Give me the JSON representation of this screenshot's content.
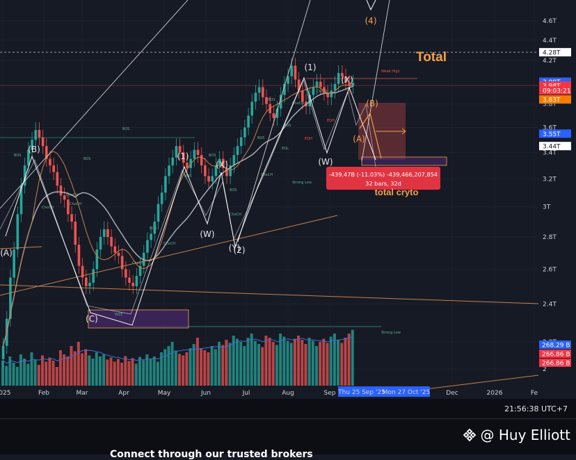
{
  "chart_data": {
    "type": "candlestick",
    "title": "Total",
    "annotation": "total cryto",
    "y_scale": "log",
    "y_axis": {
      "ticks": [
        "4.6T",
        "4.4T",
        "4.2T",
        "3.8T",
        "3.6T",
        "3.4T",
        "3.2T",
        "3T",
        "2.8T",
        "2.6T",
        "2.4T",
        "2.2T",
        "2"
      ],
      "range_T": [
        1.98,
        4.88
      ]
    },
    "x_axis": {
      "ticks": [
        "2025",
        "Feb",
        "Mar",
        "Apr",
        "May",
        "Jun",
        "Jul",
        "Aug",
        "Sep",
        "Dec",
        "2026",
        "Fe"
      ],
      "highlight_dates": [
        "Thu 25 Sep '25",
        "Mon 27 Oct '25"
      ]
    },
    "price_badges": [
      {
        "label": "4.28T",
        "value_T": 4.28,
        "bg": "#ffffff",
        "fg": "#131722"
      },
      {
        "label": "3.99T",
        "value_T": 4.0,
        "bg": "#2962ff",
        "fg": "#ffffff"
      },
      {
        "label": "3.98T",
        "value_T": 3.965,
        "bg": "#f23645",
        "fg": "#ffffff"
      },
      {
        "label": "09:03:21",
        "value_T": 3.92,
        "bg": "#f23645",
        "fg": "#ffffff"
      },
      {
        "label": "3.83T",
        "value_T": 3.84,
        "bg": "#f57c00",
        "fg": "#ffffff"
      },
      {
        "label": "3.55T",
        "value_T": 3.55,
        "bg": "#2962ff",
        "fg": "#ffffff"
      },
      {
        "label": "3.44T",
        "value_T": 3.45,
        "bg": "#ffffff",
        "fg": "#131722"
      }
    ],
    "volume_badges": [
      {
        "label": "268.29 B",
        "bg": "#2962ff",
        "fg": "#ffffff"
      },
      {
        "label": "266.86 B",
        "bg": "#f23645",
        "fg": "#ffffff"
      },
      {
        "label": "266.86 B",
        "bg": "#f23645",
        "fg": "#ffffff"
      }
    ],
    "wave_labels": [
      {
        "text": "(A)",
        "color": "white"
      },
      {
        "text": "(B)",
        "color": "white"
      },
      {
        "text": "(C)",
        "color": "white"
      },
      {
        "text": "(1)",
        "color": "white"
      },
      {
        "text": "(X)",
        "color": "white"
      },
      {
        "text": "(W)",
        "color": "white"
      },
      {
        "text": "(Y)",
        "color": "white"
      },
      {
        "text": "(2)",
        "color": "white"
      },
      {
        "text": "(1)",
        "color": "white"
      },
      {
        "text": "(X)",
        "color": "white"
      },
      {
        "text": "(W)",
        "color": "white"
      },
      {
        "text": "(B)",
        "color": "orange"
      },
      {
        "text": "(A)",
        "color": "orange"
      },
      {
        "text": "(4)",
        "color": "orange"
      }
    ],
    "structure_labels": [
      "BOS",
      "BOS",
      "BOS",
      "BOS",
      "BOS",
      "BOS",
      "BOS",
      "BOS",
      "BOS",
      "ChoCH",
      "ChoCH",
      "ChoCH",
      "ChoCH",
      "ChoCH",
      "ChoCH",
      "ChoCH",
      "ChoCH",
      "ChoCH",
      "EQH",
      "EQH",
      "EQL",
      "Weak High",
      "Strong Low",
      "Strong Low",
      "WZE",
      "BOS"
    ],
    "measurement": {
      "line1": "-439.47B (-11.03%) -439,466,207,854",
      "line2": "32 bars, 32d"
    },
    "moving_averages": [
      {
        "name": "MA long",
        "color": "#b2b5be"
      },
      {
        "name": "MA short",
        "color": "#c8814a"
      }
    ],
    "colors": {
      "up": "#26a69a",
      "down": "#ef5350",
      "background": "#161a25",
      "accent": "#f5a04a"
    },
    "close_series_T": [
      2.18,
      2.32,
      2.55,
      2.72,
      2.95,
      3.15,
      3.3,
      3.42,
      3.5,
      3.58,
      3.52,
      3.45,
      3.35,
      3.3,
      3.25,
      3.15,
      3.08,
      3.05,
      2.95,
      2.9,
      2.75,
      2.62,
      2.55,
      2.5,
      2.52,
      2.6,
      2.72,
      2.8,
      2.85,
      2.8,
      2.74,
      2.7,
      2.68,
      2.6,
      2.55,
      2.52,
      2.5,
      2.56,
      2.62,
      2.7,
      2.78,
      2.82,
      2.9,
      3.02,
      3.1,
      3.22,
      3.3,
      3.36,
      3.45,
      3.4,
      3.32,
      3.28,
      3.35,
      3.42,
      3.38,
      3.3,
      3.22,
      3.18,
      3.22,
      3.3,
      3.35,
      3.28,
      3.22,
      3.3,
      3.38,
      3.45,
      3.52,
      3.6,
      3.7,
      3.82,
      3.9,
      3.95,
      3.86,
      3.8,
      3.72,
      3.68,
      3.76,
      3.88,
      3.98,
      4.05,
      4.15,
      4.02,
      3.92,
      3.82,
      3.78,
      3.88,
      3.95,
      4.0,
      3.95,
      3.9,
      3.86,
      3.92,
      3.98,
      4.08,
      4.05,
      3.99,
      3.96,
      3.99
    ],
    "volume_B": [
      120,
      95,
      140,
      110,
      90,
      150,
      130,
      105,
      160,
      125,
      100,
      145,
      115,
      135,
      120,
      90,
      170,
      150,
      140,
      190,
      165,
      210,
      155,
      175,
      145,
      130,
      160,
      140,
      150,
      125,
      135,
      115,
      128,
      110,
      142,
      118,
      132,
      105,
      138,
      122,
      150,
      128,
      140,
      115,
      160,
      175,
      190,
      210,
      168,
      152,
      145,
      160,
      180,
      200,
      230,
      180,
      170,
      160,
      190,
      175,
      210,
      195,
      220,
      205,
      240,
      225,
      210,
      190,
      230,
      250,
      215,
      200,
      185,
      240,
      230,
      210,
      195,
      250,
      235,
      215,
      205,
      225,
      240,
      220,
      200,
      230,
      215,
      190,
      210,
      225,
      205,
      235,
      250,
      220,
      205,
      230,
      250,
      268
    ]
  },
  "footer": {
    "clock": "21:56:38 UTC+7",
    "watermark": "@ Huy Elliott",
    "cta": "Connect through our trusted brokers"
  }
}
